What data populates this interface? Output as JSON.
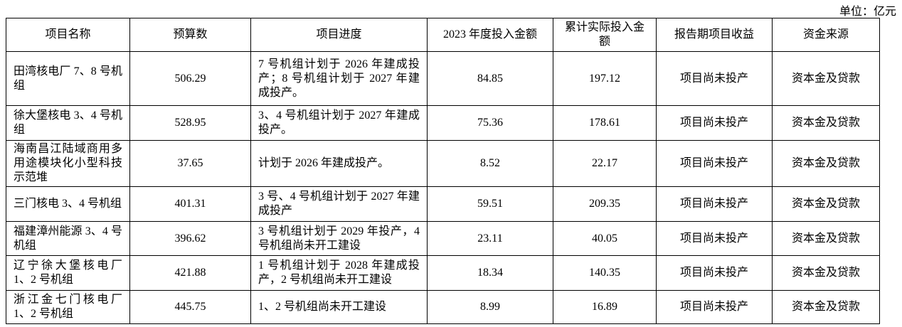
{
  "header": {
    "unit": "单位：亿元"
  },
  "table": {
    "columns": [
      "项目名称",
      "预算数",
      "项目进度",
      "2023 年度投入金额",
      "累计实际投入金额",
      "报告期项目收益",
      "资金来源"
    ],
    "rows": [
      [
        "田湾核电厂 7、8 号机组",
        506.29,
        "7 号机组计划于 2026 年建成投产；8 号机组计划于 2027 年建成投产。",
        84.85,
        197.12,
        "项目尚未投产",
        "资本金及贷款"
      ],
      [
        "徐大堡核电 3、4 号机组",
        528.95,
        "3、4 号机组计划于 2027 年建成投产。",
        75.36,
        178.61,
        "项目尚未投产",
        "资本金及贷款"
      ],
      [
        "海南昌江陆域商用多用途模块化小型科技示范堆",
        37.65,
        "计划于 2026 年建成投产。",
        8.52,
        22.17,
        "项目尚未投产",
        "资本金及贷款"
      ],
      [
        "三门核电 3、4 号机组",
        401.31,
        "3 号、4 号机组计划于 2027 年建成投产",
        59.51,
        209.35,
        "项目尚未投产",
        "资本金及贷款"
      ],
      [
        "福建漳州能源 3、4 号机组",
        396.62,
        "3 号机组计划于 2029 年投产，4 号机组尚未开工建设",
        23.11,
        40.05,
        "项目尚未投产",
        "资本金及贷款"
      ],
      [
        "辽宁徐大堡核电厂 1、2 号机组",
        421.88,
        "1 号机组计划于 2028 年建成投产，2 号机组尚未开工建设",
        18.34,
        140.35,
        "项目尚未投产",
        "资本金及贷款"
      ],
      [
        "浙江金七门核电厂 1、2 号机组",
        445.75,
        "1、2 号机组尚未开工建设",
        8.99,
        16.89,
        "项目尚未投产",
        "资本金及贷款"
      ]
    ]
  }
}
